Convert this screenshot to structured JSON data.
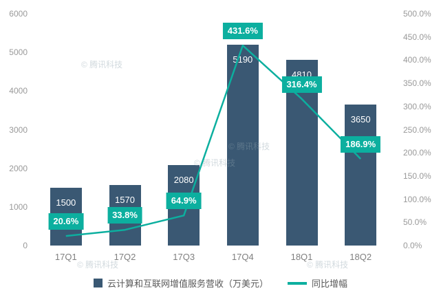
{
  "chart_data": {
    "type": "bar",
    "subtype": "combo-bar-line",
    "categories": [
      "17Q1",
      "17Q2",
      "17Q3",
      "17Q4",
      "18Q1",
      "18Q2"
    ],
    "series": [
      {
        "name": "云计算和互联网增值服务营收（万美元）",
        "type": "bar",
        "axis": "left",
        "values": [
          1500,
          1570,
          2080,
          5190,
          4810,
          3650
        ],
        "data_labels": [
          "1500",
          "1570",
          "2080",
          "5190",
          "4810",
          "3650"
        ]
      },
      {
        "name": "同比增幅",
        "type": "line",
        "axis": "right",
        "values": [
          20.6,
          33.8,
          64.9,
          431.6,
          316.4,
          186.9
        ],
        "data_labels": [
          "20.6%",
          "33.8%",
          "64.9%",
          "431.6%",
          "316.4%",
          "186.9%"
        ]
      }
    ],
    "left_axis": {
      "min": 0,
      "max": 6000,
      "step": 1000,
      "tick_labels": [
        "6000",
        "5000",
        "4000",
        "3000",
        "2000",
        "1000",
        "0"
      ]
    },
    "right_axis": {
      "min": 0,
      "max": 500,
      "step": 50,
      "tick_labels": [
        "500.0%",
        "450.0%",
        "400.0%",
        "350.0%",
        "300.0%",
        "250.0%",
        "200.0%",
        "150.0%",
        "100.0%",
        "50.0%",
        "0.0%"
      ]
    },
    "grid": false,
    "legend_position": "bottom"
  },
  "colors": {
    "bar": "#3a5873",
    "line": "#0caf9f",
    "label_bg": "#0caf9f",
    "axis_text": "#999999",
    "category_text": "#7f7f7f",
    "legend_text": "#595959",
    "background": "#ffffff"
  },
  "watermark_text": "© 腾讯科技"
}
